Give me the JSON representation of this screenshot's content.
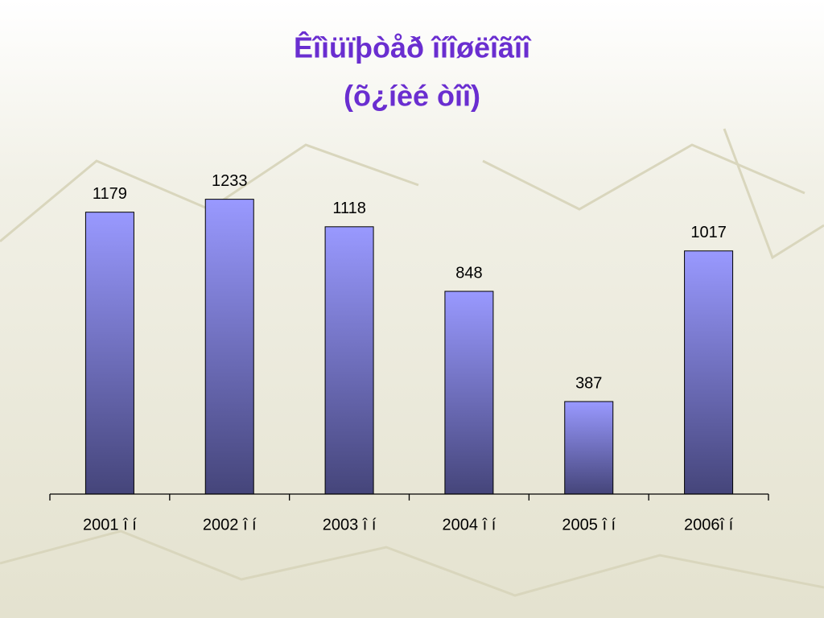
{
  "chart_data": {
    "type": "bar",
    "title": "Êîìüïþòåð îíîøëîãîî",
    "subtitle": "(õ¿íèé òîî)",
    "categories": [
      "2001 î í",
      "2002 î í",
      "2003 î í",
      "2004 î í",
      "2005 î í",
      "2006î í"
    ],
    "values": [
      1179,
      1233,
      1118,
      848,
      387,
      1017
    ],
    "color": "#9999ff",
    "ylim": [
      0,
      1400
    ]
  }
}
